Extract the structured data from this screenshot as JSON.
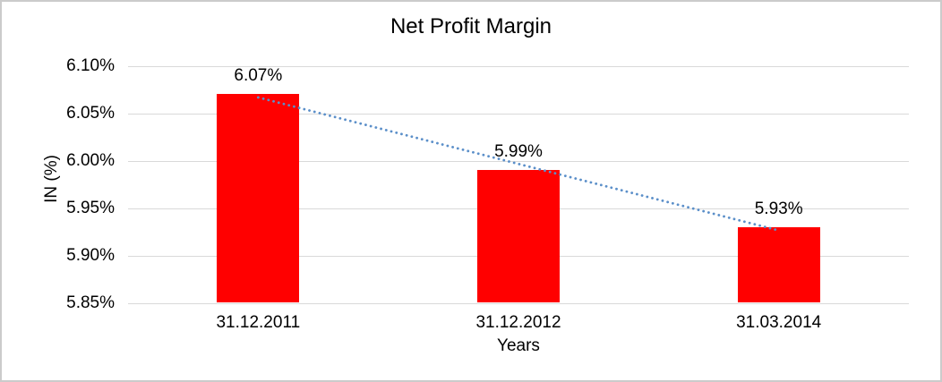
{
  "chart_data": {
    "type": "bar",
    "title": "Net Profit Margin",
    "xlabel": "Years",
    "ylabel": "IN (%)",
    "categories": [
      "31.12.2011",
      "31.12.2012",
      "31.03.2014"
    ],
    "values": [
      6.07,
      5.99,
      5.93
    ],
    "data_labels": [
      "6.07%",
      "5.99%",
      "5.93%"
    ],
    "ylim": [
      5.85,
      6.1
    ],
    "yticks": [
      {
        "value": 6.1,
        "label": "6.10%"
      },
      {
        "value": 6.05,
        "label": "6.05%"
      },
      {
        "value": 6.0,
        "label": "6.00%"
      },
      {
        "value": 5.95,
        "label": "5.95%"
      },
      {
        "value": 5.9,
        "label": "5.90%"
      },
      {
        "value": 5.85,
        "label": "5.85%"
      }
    ],
    "grid": true,
    "legend": "none",
    "trendline": {
      "type": "linear",
      "style": "dotted"
    },
    "colors": {
      "bar": "#ff0000",
      "trendline": "#5b8fc9",
      "gridline": "#d9d9d9",
      "text": "#000000",
      "border": "#cbcbcb"
    }
  }
}
